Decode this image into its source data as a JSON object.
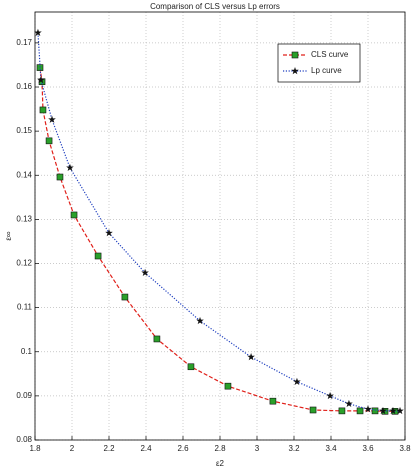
{
  "chart_data": {
    "type": "line",
    "title": "Comparison of CLS versus Lp errors",
    "xlabel": "ε2",
    "ylabel": "ε∞",
    "xlim": [
      1.8,
      3.8
    ],
    "ylim": [
      0.08,
      0.177
    ],
    "xticks": [
      1.8,
      2,
      2.2,
      2.4,
      2.6,
      2.8,
      3,
      3.2,
      3.4,
      3.6,
      3.8
    ],
    "yticks": [
      0.08,
      0.09,
      0.1,
      0.11,
      0.12,
      0.13,
      0.14,
      0.15,
      0.16,
      0.17
    ],
    "grid": true,
    "legend": "upper right",
    "series": [
      {
        "name": "CLS curve",
        "color": "#e0201a",
        "marker": "square",
        "marker_color": "#2aa02a",
        "dash": "dashed",
        "x": [
          1.827,
          1.838,
          1.843,
          1.876,
          1.935,
          2.011,
          2.141,
          2.286,
          2.459,
          2.643,
          2.843,
          3.086,
          3.303,
          3.459,
          3.557,
          3.638,
          3.692,
          3.746
        ],
        "values": [
          0.1644,
          0.1612,
          0.1548,
          0.1478,
          0.1396,
          0.131,
          0.1217,
          0.1124,
          0.1029,
          0.0966,
          0.0922,
          0.0888,
          0.0868,
          0.0866,
          0.0866,
          0.0866,
          0.0865,
          0.0865
        ]
      },
      {
        "name": "Lp curve",
        "color": "#1f3fbf",
        "marker": "star",
        "marker_color": "#111111",
        "dash": "dotted",
        "x": [
          1.816,
          1.832,
          1.892,
          1.989,
          2.2,
          2.395,
          2.692,
          2.968,
          3.216,
          3.395,
          3.497,
          3.6,
          3.681,
          3.735,
          3.773
        ],
        "values": [
          0.1723,
          0.1616,
          0.1526,
          0.1417,
          0.1269,
          0.1179,
          0.107,
          0.0988,
          0.0932,
          0.09,
          0.0882,
          0.087,
          0.0866,
          0.0866,
          0.0866
        ]
      }
    ]
  }
}
